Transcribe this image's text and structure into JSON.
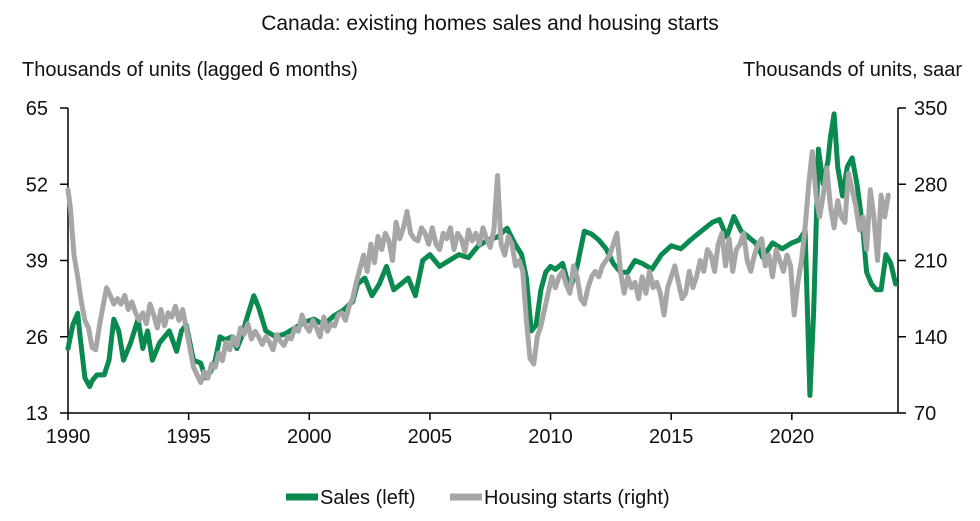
{
  "chart_data": {
    "type": "line",
    "title": "Canada: existing homes sales and housing starts",
    "ylabel_left": "Thousands of units (lagged 6 months)",
    "ylabel_right": "Thousands of units, saar",
    "xlim": [
      1990,
      2024.4
    ],
    "ylim_left": [
      13,
      65
    ],
    "ylim_right": [
      70,
      350
    ],
    "xticks": [
      "1990",
      "1995",
      "2000",
      "2005",
      "2010",
      "2015",
      "2020"
    ],
    "yticks_left": [
      "13",
      "26",
      "39",
      "52",
      "65"
    ],
    "yticks_right": [
      "70",
      "140",
      "210",
      "280",
      "350"
    ],
    "grid": false,
    "legend": "bottom",
    "colors": {
      "sales": "#0a8a4e",
      "starts": "#a6a6a6"
    },
    "series": [
      {
        "name": "Sales (left)",
        "axis": "left",
        "x": [
          1990.0,
          1990.2,
          1990.4,
          1990.5,
          1990.7,
          1990.9,
          1991.0,
          1991.2,
          1991.5,
          1991.7,
          1991.9,
          1992.1,
          1992.3,
          1992.6,
          1992.9,
          1993.1,
          1993.3,
          1993.5,
          1993.8,
          1994.0,
          1994.2,
          1994.5,
          1994.7,
          1994.9,
          1995.2,
          1995.5,
          1995.7,
          1995.9,
          1996.1,
          1996.3,
          1996.5,
          1996.8,
          1997.0,
          1997.2,
          1997.4,
          1997.7,
          1997.9,
          1998.2,
          1998.6,
          1999.0,
          1999.4,
          1999.8,
          2000.2,
          2000.6,
          2001.0,
          2001.4,
          2001.8,
          2002.0,
          2002.3,
          2002.6,
          2002.9,
          2003.2,
          2003.5,
          2003.8,
          2004.1,
          2004.4,
          2004.7,
          2005.0,
          2005.4,
          2005.8,
          2006.2,
          2006.6,
          2007.0,
          2007.4,
          2007.8,
          2008.2,
          2008.5,
          2008.8,
          2009.0,
          2009.2,
          2009.4,
          2009.6,
          2009.8,
          2010.0,
          2010.2,
          2010.5,
          2010.8,
          2011.1,
          2011.4,
          2011.7,
          2012.0,
          2012.3,
          2012.6,
          2012.9,
          2013.2,
          2013.5,
          2013.8,
          2014.2,
          2014.6,
          2015.0,
          2015.4,
          2015.8,
          2016.1,
          2016.4,
          2016.7,
          2017.0,
          2017.3,
          2017.6,
          2017.9,
          2018.2,
          2018.5,
          2018.8,
          2019.2,
          2019.6,
          2020.0,
          2020.3,
          2020.55,
          2020.65,
          2020.75,
          2020.9,
          2021.1,
          2021.3,
          2021.5,
          2021.6,
          2021.75,
          2021.9,
          2022.1,
          2022.3,
          2022.5,
          2022.7,
          2022.8,
          2022.95,
          2023.1,
          2023.3,
          2023.5,
          2023.7,
          2023.9,
          2024.1,
          2024.3
        ],
        "values": [
          24,
          28,
          30,
          26,
          19,
          17.5,
          18.5,
          19.5,
          19.5,
          22,
          29,
          27,
          22,
          25,
          29,
          24,
          27,
          22,
          25,
          26,
          27,
          23.5,
          27,
          28,
          22,
          21.5,
          19,
          20,
          22,
          26,
          25.5,
          26,
          24,
          26,
          29,
          33,
          31,
          27,
          26,
          26.5,
          27.5,
          28.5,
          29,
          28,
          29.5,
          30.5,
          32,
          35,
          36,
          33,
          35,
          38,
          34,
          35,
          36,
          33,
          39,
          40,
          38,
          39,
          40,
          39.5,
          41.5,
          42.5,
          43,
          44.5,
          42,
          40,
          36,
          27,
          28,
          34,
          37,
          38,
          37.5,
          38.5,
          34,
          38,
          44,
          43.5,
          42.5,
          41,
          38.5,
          37,
          37,
          39,
          38.5,
          37.5,
          40,
          41.5,
          41,
          42.5,
          43.5,
          44.5,
          45.5,
          46,
          43,
          46.5,
          44,
          43,
          42,
          39.5,
          42,
          41,
          42,
          42.5,
          44,
          30,
          16,
          30,
          58,
          52,
          56,
          60,
          64,
          55,
          50,
          55,
          56.5,
          52,
          49,
          44,
          37,
          35,
          34,
          34,
          40,
          38.5,
          35
        ]
      },
      {
        "name": "Housing starts (right)",
        "axis": "right",
        "x": [
          1990.0,
          1990.1,
          1990.25,
          1990.4,
          1990.55,
          1990.7,
          1990.85,
          1991.0,
          1991.15,
          1991.3,
          1991.45,
          1991.6,
          1991.75,
          1991.9,
          1992.05,
          1992.2,
          1992.35,
          1992.5,
          1992.65,
          1992.8,
          1992.95,
          1993.1,
          1993.25,
          1993.4,
          1993.55,
          1993.7,
          1993.85,
          1994.0,
          1994.15,
          1994.3,
          1994.45,
          1994.6,
          1994.75,
          1994.9,
          1995.05,
          1995.2,
          1995.35,
          1995.5,
          1995.65,
          1995.8,
          1995.95,
          1996.1,
          1996.25,
          1996.4,
          1996.55,
          1996.7,
          1996.85,
          1997.0,
          1997.15,
          1997.3,
          1997.45,
          1997.6,
          1997.75,
          1997.9,
          1998.05,
          1998.2,
          1998.35,
          1998.5,
          1998.65,
          1998.8,
          1998.95,
          1999.1,
          1999.25,
          1999.4,
          1999.55,
          1999.7,
          1999.85,
          2000.0,
          2000.15,
          2000.3,
          2000.45,
          2000.6,
          2000.75,
          2000.9,
          2001.05,
          2001.2,
          2001.35,
          2001.5,
          2001.65,
          2001.8,
          2001.95,
          2002.1,
          2002.25,
          2002.4,
          2002.55,
          2002.7,
          2002.85,
          2003.0,
          2003.15,
          2003.3,
          2003.45,
          2003.6,
          2003.75,
          2003.9,
          2004.05,
          2004.2,
          2004.35,
          2004.5,
          2004.65,
          2004.8,
          2004.95,
          2005.1,
          2005.25,
          2005.4,
          2005.55,
          2005.7,
          2005.85,
          2006.0,
          2006.15,
          2006.3,
          2006.45,
          2006.6,
          2006.75,
          2006.9,
          2007.05,
          2007.2,
          2007.35,
          2007.5,
          2007.65,
          2007.8,
          2007.95,
          2008.1,
          2008.25,
          2008.4,
          2008.55,
          2008.7,
          2008.85,
          2009.0,
          2009.15,
          2009.3,
          2009.45,
          2009.6,
          2009.75,
          2009.9,
          2010.05,
          2010.2,
          2010.35,
          2010.5,
          2010.65,
          2010.8,
          2010.95,
          2011.1,
          2011.25,
          2011.4,
          2011.55,
          2011.7,
          2011.85,
          2012.0,
          2012.15,
          2012.3,
          2012.45,
          2012.6,
          2012.75,
          2012.9,
          2013.05,
          2013.2,
          2013.35,
          2013.5,
          2013.65,
          2013.8,
          2013.95,
          2014.1,
          2014.25,
          2014.4,
          2014.55,
          2014.7,
          2014.85,
          2015.0,
          2015.15,
          2015.3,
          2015.45,
          2015.6,
          2015.75,
          2015.9,
          2016.05,
          2016.2,
          2016.35,
          2016.5,
          2016.65,
          2016.8,
          2016.95,
          2017.1,
          2017.25,
          2017.4,
          2017.55,
          2017.7,
          2017.85,
          2018.0,
          2018.15,
          2018.3,
          2018.45,
          2018.6,
          2018.75,
          2018.9,
          2019.05,
          2019.2,
          2019.35,
          2019.5,
          2019.65,
          2019.8,
          2019.95,
          2020.1,
          2020.25,
          2020.4,
          2020.55,
          2020.7,
          2020.85,
          2021.0,
          2021.15,
          2021.3,
          2021.45,
          2021.6,
          2021.75,
          2021.9,
          2022.05,
          2022.2,
          2022.35,
          2022.5,
          2022.65,
          2022.8,
          2022.95,
          2023.1,
          2023.25,
          2023.4,
          2023.55,
          2023.7,
          2023.85,
          2024.0
        ],
        "values": [
          275,
          258,
          215,
          195,
          172,
          155,
          148,
          130,
          128,
          150,
          168,
          185,
          178,
          170,
          175,
          170,
          178,
          165,
          172,
          162,
          155,
          162,
          152,
          170,
          160,
          148,
          165,
          150,
          162,
          158,
          168,
          155,
          165,
          148,
          130,
          112,
          105,
          98,
          108,
          102,
          115,
          112,
          125,
          118,
          135,
          128,
          140,
          132,
          148,
          142,
          152,
          138,
          145,
          140,
          133,
          140,
          135,
          128,
          142,
          136,
          132,
          140,
          138,
          148,
          145,
          160,
          150,
          145,
          155,
          148,
          140,
          158,
          145,
          152,
          150,
          160,
          162,
          155,
          168,
          175,
          190,
          202,
          215,
          200,
          225,
          208,
          232,
          220,
          235,
          228,
          210,
          245,
          230,
          240,
          255,
          235,
          230,
          228,
          240,
          235,
          225,
          240,
          225,
          220,
          235,
          230,
          240,
          220,
          235,
          230,
          218,
          238,
          228,
          235,
          225,
          240,
          230,
          222,
          238,
          288,
          225,
          215,
          232,
          225,
          205,
          210,
          200,
          155,
          120,
          115,
          140,
          150,
          165,
          180,
          195,
          185,
          195,
          200,
          188,
          180,
          205,
          195,
          175,
          170,
          185,
          195,
          200,
          195,
          205,
          210,
          215,
          225,
          235,
          200,
          180,
          195,
          185,
          190,
          175,
          195,
          180,
          200,
          185,
          190,
          180,
          160,
          185,
          195,
          205,
          190,
          175,
          180,
          200,
          185,
          195,
          210,
          200,
          220,
          215,
          200,
          225,
          235,
          205,
          230,
          200,
          220,
          225,
          235,
          210,
          200,
          215,
          225,
          230,
          205,
          215,
          195,
          220,
          210,
          200,
          215,
          205,
          160,
          190,
          210,
          240,
          280,
          310,
          270,
          250,
          270,
          295,
          260,
          240,
          265,
          250,
          245,
          290,
          275,
          260,
          238,
          250,
          220,
          275,
          250,
          210,
          270,
          250,
          270
        ]
      }
    ]
  }
}
